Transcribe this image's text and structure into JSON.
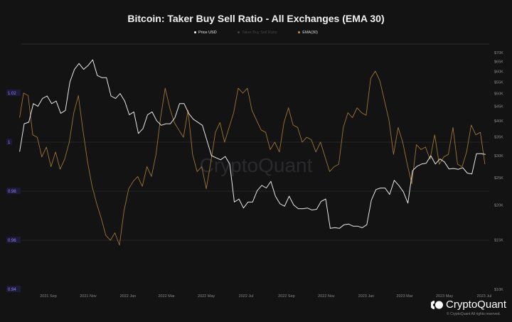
{
  "chart_data": {
    "type": "line",
    "title": "Bitcoin: Taker Buy Sell Ratio - All Exchanges (EMA 30)",
    "legend": [
      {
        "name": "Price USD",
        "color": "#ffffff",
        "visible": true
      },
      {
        "name": "Taker Buy Sell Ratio",
        "color": "#555555",
        "visible": false
      },
      {
        "name": "EMA(30)",
        "color": "#a0783a",
        "visible": true
      }
    ],
    "legend_position": "top-center",
    "grid": true,
    "x_ticks": [
      "2021 Sep",
      "2021 Nov",
      "2022 Jan",
      "2022 Mar",
      "2022 May",
      "2022 Jul",
      "2022 Sep",
      "2022 Nov",
      "2023 Jan",
      "2023 Mar",
      "2023 May",
      "2023 Jul"
    ],
    "x_tick_dates": [
      "2021-09-01",
      "2021-11-01",
      "2022-01-01",
      "2022-03-01",
      "2022-05-01",
      "2022-07-01",
      "2022-09-01",
      "2022-11-01",
      "2023-01-01",
      "2023-03-01",
      "2023-05-01",
      "2023-07-01"
    ],
    "left_axis": {
      "ticks": [
        "1.02",
        "1",
        "0.98",
        "0.96",
        "0.94"
      ],
      "tick_values": [
        1.02,
        1.0,
        0.98,
        0.96,
        0.94
      ],
      "ylim": [
        0.94,
        1.04
      ],
      "color": "#8f86ff"
    },
    "right_axis": {
      "scale": "log",
      "ticks": [
        "$70K",
        "$65K",
        "$60K",
        "$55K",
        "$50K",
        "$45K",
        "$40K",
        "$35K",
        "$30K",
        "$25K",
        "$20K",
        "$15K",
        "$10K"
      ],
      "tick_values": [
        70000,
        65000,
        60000,
        55000,
        50000,
        45000,
        40000,
        35000,
        30000,
        25000,
        20000,
        15000,
        10000
      ],
      "ylim": [
        10000,
        70000
      ]
    },
    "series": [
      {
        "name": "Price USD",
        "axis": "right",
        "color": "#e8e8e8",
        "points": [
          [
            "2021-07-19",
            31000
          ],
          [
            "2021-07-26",
            39000
          ],
          [
            "2021-08-02",
            39500
          ],
          [
            "2021-08-09",
            46000
          ],
          [
            "2021-08-16",
            45000
          ],
          [
            "2021-08-23",
            48000
          ],
          [
            "2021-08-30",
            49000
          ],
          [
            "2021-09-06",
            46000
          ],
          [
            "2021-09-13",
            47000
          ],
          [
            "2021-09-20",
            42500
          ],
          [
            "2021-09-27",
            43500
          ],
          [
            "2021-10-04",
            55000
          ],
          [
            "2021-10-11",
            61000
          ],
          [
            "2021-10-18",
            64000
          ],
          [
            "2021-10-25",
            61000
          ],
          [
            "2021-11-01",
            63000
          ],
          [
            "2021-11-08",
            66000
          ],
          [
            "2021-11-15",
            58000
          ],
          [
            "2021-11-22",
            57000
          ],
          [
            "2021-11-29",
            57000
          ],
          [
            "2021-12-06",
            49000
          ],
          [
            "2021-12-13",
            48000
          ],
          [
            "2021-12-20",
            50000
          ],
          [
            "2021-12-27",
            47000
          ],
          [
            "2022-01-03",
            42000
          ],
          [
            "2022-01-10",
            43000
          ],
          [
            "2022-01-17",
            36000
          ],
          [
            "2022-01-24",
            37500
          ],
          [
            "2022-01-31",
            42000
          ],
          [
            "2022-02-07",
            43000
          ],
          [
            "2022-02-14",
            40000
          ],
          [
            "2022-02-21",
            38500
          ],
          [
            "2022-02-28",
            39000
          ],
          [
            "2022-03-07",
            39000
          ],
          [
            "2022-03-14",
            41000
          ],
          [
            "2022-03-21",
            46000
          ],
          [
            "2022-03-28",
            46000
          ],
          [
            "2022-04-04",
            42500
          ],
          [
            "2022-04-11",
            40500
          ],
          [
            "2022-04-18",
            39500
          ],
          [
            "2022-04-25",
            38500
          ],
          [
            "2022-05-02",
            34000
          ],
          [
            "2022-05-09",
            30000
          ],
          [
            "2022-05-16",
            29500
          ],
          [
            "2022-05-23",
            29000
          ],
          [
            "2022-05-30",
            29800
          ],
          [
            "2022-06-06",
            28000
          ],
          [
            "2022-06-13",
            20500
          ],
          [
            "2022-06-20",
            21000
          ],
          [
            "2022-06-27",
            19500
          ],
          [
            "2022-07-04",
            20500
          ],
          [
            "2022-07-11",
            20500
          ],
          [
            "2022-07-18",
            22500
          ],
          [
            "2022-07-25",
            23500
          ],
          [
            "2022-08-01",
            23000
          ],
          [
            "2022-08-08",
            24300
          ],
          [
            "2022-08-15",
            21500
          ],
          [
            "2022-08-22",
            20200
          ],
          [
            "2022-08-29",
            19800
          ],
          [
            "2022-09-05",
            21500
          ],
          [
            "2022-09-12",
            20000
          ],
          [
            "2022-09-19",
            19400
          ],
          [
            "2022-09-26",
            19400
          ],
          [
            "2022-10-03",
            19500
          ],
          [
            "2022-10-10",
            19200
          ],
          [
            "2022-10-17",
            19300
          ],
          [
            "2022-10-24",
            20600
          ],
          [
            "2022-10-31",
            21000
          ],
          [
            "2022-11-07",
            16500
          ],
          [
            "2022-11-14",
            16600
          ],
          [
            "2022-11-21",
            16500
          ],
          [
            "2022-11-28",
            17000
          ],
          [
            "2022-12-05",
            17100
          ],
          [
            "2022-12-12",
            16800
          ],
          [
            "2022-12-19",
            16800
          ],
          [
            "2022-12-26",
            16600
          ],
          [
            "2023-01-02",
            17000
          ],
          [
            "2023-01-09",
            20800
          ],
          [
            "2023-01-16",
            22700
          ],
          [
            "2023-01-23",
            23000
          ],
          [
            "2023-01-30",
            23000
          ],
          [
            "2023-02-06",
            21800
          ],
          [
            "2023-02-13",
            24500
          ],
          [
            "2023-02-20",
            23500
          ],
          [
            "2023-02-27",
            22300
          ],
          [
            "2023-03-06",
            20300
          ],
          [
            "2023-03-13",
            26500
          ],
          [
            "2023-03-20",
            27500
          ],
          [
            "2023-03-27",
            28000
          ],
          [
            "2023-04-03",
            28200
          ],
          [
            "2023-04-10",
            30000
          ],
          [
            "2023-04-17",
            28000
          ],
          [
            "2023-04-24",
            29200
          ],
          [
            "2023-05-01",
            28500
          ],
          [
            "2023-05-08",
            26900
          ],
          [
            "2023-05-15",
            27000
          ],
          [
            "2023-05-22",
            26800
          ],
          [
            "2023-05-29",
            27200
          ],
          [
            "2023-06-05",
            26000
          ],
          [
            "2023-06-12",
            25800
          ],
          [
            "2023-06-19",
            30500
          ],
          [
            "2023-06-26",
            30500
          ],
          [
            "2023-07-03",
            30300
          ]
        ]
      },
      {
        "name": "EMA(30)",
        "axis": "left",
        "color": "#9a7535",
        "points": [
          [
            "2021-07-19",
            1.01
          ],
          [
            "2021-07-25",
            1.02
          ],
          [
            "2021-08-01",
            1.019
          ],
          [
            "2021-08-08",
            1.003
          ],
          [
            "2021-08-15",
            1.002
          ],
          [
            "2021-08-22",
            0.994
          ],
          [
            "2021-08-29",
            0.998
          ],
          [
            "2021-09-05",
            0.99
          ],
          [
            "2021-09-12",
            0.996
          ],
          [
            "2021-09-19",
            0.989
          ],
          [
            "2021-09-26",
            0.993
          ],
          [
            "2021-10-03",
            1.0
          ],
          [
            "2021-10-10",
            1.012
          ],
          [
            "2021-10-17",
            1.019
          ],
          [
            "2021-10-24",
            1.005
          ],
          [
            "2021-10-31",
            0.992
          ],
          [
            "2021-11-07",
            0.982
          ],
          [
            "2021-11-14",
            0.975
          ],
          [
            "2021-11-21",
            0.969
          ],
          [
            "2021-11-28",
            0.962
          ],
          [
            "2021-12-05",
            0.96
          ],
          [
            "2021-12-12",
            0.963
          ],
          [
            "2021-12-19",
            0.958
          ],
          [
            "2021-12-26",
            0.972
          ],
          [
            "2022-01-02",
            0.981
          ],
          [
            "2022-01-09",
            0.984
          ],
          [
            "2022-01-16",
            0.986
          ],
          [
            "2022-01-23",
            0.982
          ],
          [
            "2022-01-30",
            0.99
          ],
          [
            "2022-02-06",
            0.986
          ],
          [
            "2022-02-13",
            0.995
          ],
          [
            "2022-02-20",
            1.01
          ],
          [
            "2022-02-27",
            1.022
          ],
          [
            "2022-03-06",
            1.014
          ],
          [
            "2022-03-13",
            1.008
          ],
          [
            "2022-03-20",
            1.005
          ],
          [
            "2022-03-27",
            1.002
          ],
          [
            "2022-04-03",
            1.013
          ],
          [
            "2022-04-10",
            0.995
          ],
          [
            "2022-04-17",
            0.988
          ],
          [
            "2022-04-24",
            0.99
          ],
          [
            "2022-05-01",
            0.981
          ],
          [
            "2022-05-08",
            0.992
          ],
          [
            "2022-05-15",
            1.004
          ],
          [
            "2022-05-22",
            1.008
          ],
          [
            "2022-05-29",
            1.0
          ],
          [
            "2022-06-05",
            1.006
          ],
          [
            "2022-06-12",
            1.012
          ],
          [
            "2022-06-19",
            1.022
          ],
          [
            "2022-06-26",
            1.02
          ],
          [
            "2022-07-03",
            1.022
          ],
          [
            "2022-07-10",
            1.013
          ],
          [
            "2022-07-17",
            1.009
          ],
          [
            "2022-07-24",
            1.005
          ],
          [
            "2022-07-31",
            1.004
          ],
          [
            "2022-08-07",
            0.997
          ],
          [
            "2022-08-14",
            1.0
          ],
          [
            "2022-08-21",
            0.996
          ],
          [
            "2022-08-28",
            1.008
          ],
          [
            "2022-09-04",
            1.014
          ],
          [
            "2022-09-11",
            1.007
          ],
          [
            "2022-09-18",
            1.006
          ],
          [
            "2022-09-25",
            1.0
          ],
          [
            "2022-10-02",
            1.002
          ],
          [
            "2022-10-09",
            1.001
          ],
          [
            "2022-10-16",
            0.996
          ],
          [
            "2022-10-23",
            1.0
          ],
          [
            "2022-10-30",
            0.994
          ],
          [
            "2022-11-06",
            0.988
          ],
          [
            "2022-11-13",
            0.99
          ],
          [
            "2022-11-20",
            0.991
          ],
          [
            "2022-11-27",
            1.006
          ],
          [
            "2022-12-04",
            1.012
          ],
          [
            "2022-12-11",
            1.01
          ],
          [
            "2022-12-18",
            1.014
          ],
          [
            "2022-12-25",
            1.012
          ],
          [
            "2023-01-01",
            1.011
          ],
          [
            "2023-01-08",
            1.026
          ],
          [
            "2023-01-15",
            1.029
          ],
          [
            "2023-01-22",
            1.025
          ],
          [
            "2023-01-29",
            1.017
          ],
          [
            "2023-02-05",
            1.009
          ],
          [
            "2023-02-12",
            0.995
          ],
          [
            "2023-02-19",
            1.006
          ],
          [
            "2023-02-26",
            1.0
          ],
          [
            "2023-03-05",
            0.991
          ],
          [
            "2023-03-12",
            0.983
          ],
          [
            "2023-03-19",
            0.999
          ],
          [
            "2023-03-26",
            0.997
          ],
          [
            "2023-04-02",
            0.998
          ],
          [
            "2023-04-09",
            0.993
          ],
          [
            "2023-04-16",
            1.003
          ],
          [
            "2023-04-23",
            0.991
          ],
          [
            "2023-04-30",
            0.994
          ],
          [
            "2023-05-07",
            0.995
          ],
          [
            "2023-05-14",
            1.006
          ],
          [
            "2023-05-21",
            0.991
          ],
          [
            "2023-05-28",
            0.99
          ],
          [
            "2023-06-04",
            0.996
          ],
          [
            "2023-06-11",
            1.007
          ],
          [
            "2023-06-18",
            1.003
          ],
          [
            "2023-06-25",
            1.004
          ],
          [
            "2023-07-02",
            0.991
          ]
        ]
      }
    ]
  },
  "watermark": "CryptoQuant",
  "footer": {
    "brand": "CryptoQuant",
    "copyright": "© CryptoQuant All rights reserved."
  }
}
